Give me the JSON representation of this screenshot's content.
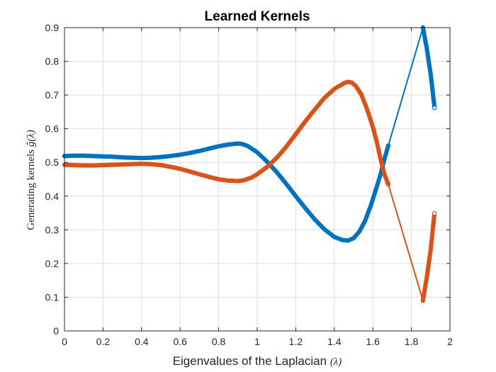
{
  "chart_data": {
    "type": "line",
    "title": "Learned Kernels",
    "xlabel": "Eigenvalues of the Laplacian",
    "xlabel_symbol": "(λ)",
    "ylabel": "Generating kernels",
    "ylabel_symbol": "ĝ(λ)",
    "xlim": [
      0,
      2
    ],
    "ylim": [
      0,
      0.9
    ],
    "xticks": [
      "0",
      "0.2",
      "0.4",
      "0.6",
      "0.8",
      "1",
      "1.2",
      "1.4",
      "1.6",
      "1.8",
      "2"
    ],
    "yticks": [
      "0",
      "0.1",
      "0.2",
      "0.3",
      "0.4",
      "0.5",
      "0.6",
      "0.7",
      "0.8",
      "0.9"
    ],
    "grid": true,
    "colors": {
      "blue": "#0072BD",
      "orange": "#D95319"
    },
    "series": [
      {
        "color": "#0072BD",
        "points": [
          [
            0.0,
            0.519
          ],
          [
            0.05,
            0.52
          ],
          [
            0.1,
            0.52
          ],
          [
            0.15,
            0.519
          ],
          [
            0.2,
            0.518
          ],
          [
            0.25,
            0.517
          ],
          [
            0.3,
            0.515
          ],
          [
            0.35,
            0.514
          ],
          [
            0.4,
            0.513
          ],
          [
            0.45,
            0.514
          ],
          [
            0.5,
            0.516
          ],
          [
            0.55,
            0.519
          ],
          [
            0.6,
            0.523
          ],
          [
            0.65,
            0.528
          ],
          [
            0.7,
            0.534
          ],
          [
            0.75,
            0.541
          ],
          [
            0.8,
            0.548
          ],
          [
            0.85,
            0.553
          ],
          [
            0.88,
            0.555
          ],
          [
            0.9,
            0.556
          ],
          [
            0.92,
            0.555
          ],
          [
            0.95,
            0.549
          ],
          [
            1.0,
            0.53
          ],
          [
            1.05,
            0.503
          ],
          [
            1.1,
            0.472
          ],
          [
            1.15,
            0.437
          ],
          [
            1.2,
            0.4
          ],
          [
            1.25,
            0.364
          ],
          [
            1.3,
            0.33
          ],
          [
            1.35,
            0.301
          ],
          [
            1.4,
            0.279
          ],
          [
            1.44,
            0.27
          ],
          [
            1.47,
            0.268
          ],
          [
            1.5,
            0.275
          ],
          [
            1.53,
            0.295
          ],
          [
            1.56,
            0.327
          ],
          [
            1.59,
            0.373
          ],
          [
            1.62,
            0.427
          ],
          [
            1.64,
            0.465
          ],
          [
            1.66,
            0.51
          ],
          [
            1.68,
            0.55
          ],
          [
            1.86,
            0.9
          ],
          [
            1.88,
            0.838
          ],
          [
            1.9,
            0.762
          ],
          [
            1.905,
            0.738
          ],
          [
            1.91,
            0.712
          ],
          [
            1.92,
            0.662
          ]
        ]
      },
      {
        "color": "#D95319",
        "points": [
          [
            0.0,
            0.493
          ],
          [
            0.05,
            0.492
          ],
          [
            0.1,
            0.491
          ],
          [
            0.15,
            0.491
          ],
          [
            0.2,
            0.492
          ],
          [
            0.25,
            0.493
          ],
          [
            0.3,
            0.494
          ],
          [
            0.35,
            0.495
          ],
          [
            0.4,
            0.496
          ],
          [
            0.45,
            0.495
          ],
          [
            0.5,
            0.492
          ],
          [
            0.55,
            0.487
          ],
          [
            0.6,
            0.481
          ],
          [
            0.65,
            0.473
          ],
          [
            0.7,
            0.465
          ],
          [
            0.75,
            0.457
          ],
          [
            0.8,
            0.45
          ],
          [
            0.85,
            0.446
          ],
          [
            0.9,
            0.445
          ],
          [
            0.93,
            0.447
          ],
          [
            0.97,
            0.455
          ],
          [
            1.0,
            0.465
          ],
          [
            1.05,
            0.486
          ],
          [
            1.1,
            0.513
          ],
          [
            1.15,
            0.546
          ],
          [
            1.2,
            0.584
          ],
          [
            1.25,
            0.622
          ],
          [
            1.3,
            0.658
          ],
          [
            1.35,
            0.692
          ],
          [
            1.4,
            0.718
          ],
          [
            1.45,
            0.735
          ],
          [
            1.47,
            0.739
          ],
          [
            1.49,
            0.737
          ],
          [
            1.51,
            0.728
          ],
          [
            1.54,
            0.702
          ],
          [
            1.57,
            0.658
          ],
          [
            1.6,
            0.605
          ],
          [
            1.62,
            0.562
          ],
          [
            1.64,
            0.51
          ],
          [
            1.66,
            0.465
          ],
          [
            1.68,
            0.435
          ],
          [
            1.86,
            0.09
          ],
          [
            1.88,
            0.16
          ],
          [
            1.9,
            0.24
          ],
          [
            1.905,
            0.268
          ],
          [
            1.91,
            0.295
          ],
          [
            1.92,
            0.349
          ]
        ]
      }
    ]
  }
}
